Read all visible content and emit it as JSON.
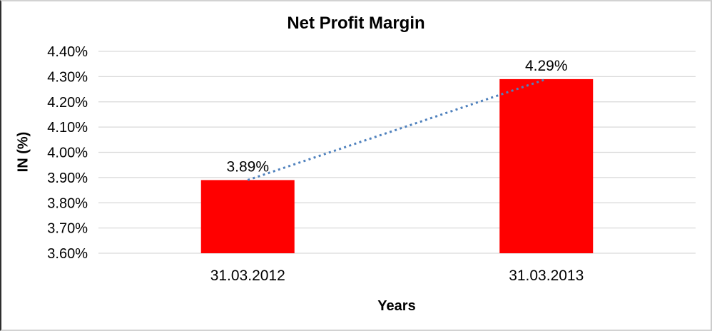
{
  "chart": {
    "title": "Net Profit Margin",
    "x_axis_title": "Years",
    "y_axis_title": "IN (%)"
  },
  "chart_data": {
    "type": "bar",
    "title": "Net Profit Margin",
    "xlabel": "Years",
    "ylabel": "IN (%)",
    "categories": [
      "31.03.2012",
      "31.03.2013"
    ],
    "values": [
      3.89,
      4.29
    ],
    "data_labels": [
      "3.89%",
      "4.29%"
    ],
    "ylim": [
      3.6,
      4.4
    ],
    "ytick_step": 0.1,
    "ytick_labels": [
      "4.40%",
      "4.30%",
      "4.20%",
      "4.10%",
      "4.00%",
      "3.90%",
      "3.80%",
      "3.70%",
      "3.60%"
    ],
    "grid": true,
    "legend": "none",
    "colors": {
      "bar": "#FF0000",
      "gridline": "#D9D9D9",
      "trendline": "#4F81BD",
      "text": "#000000"
    },
    "trendline": {
      "style": "dotted",
      "connects": "bar tops from 3.89% to 4.29%"
    }
  }
}
